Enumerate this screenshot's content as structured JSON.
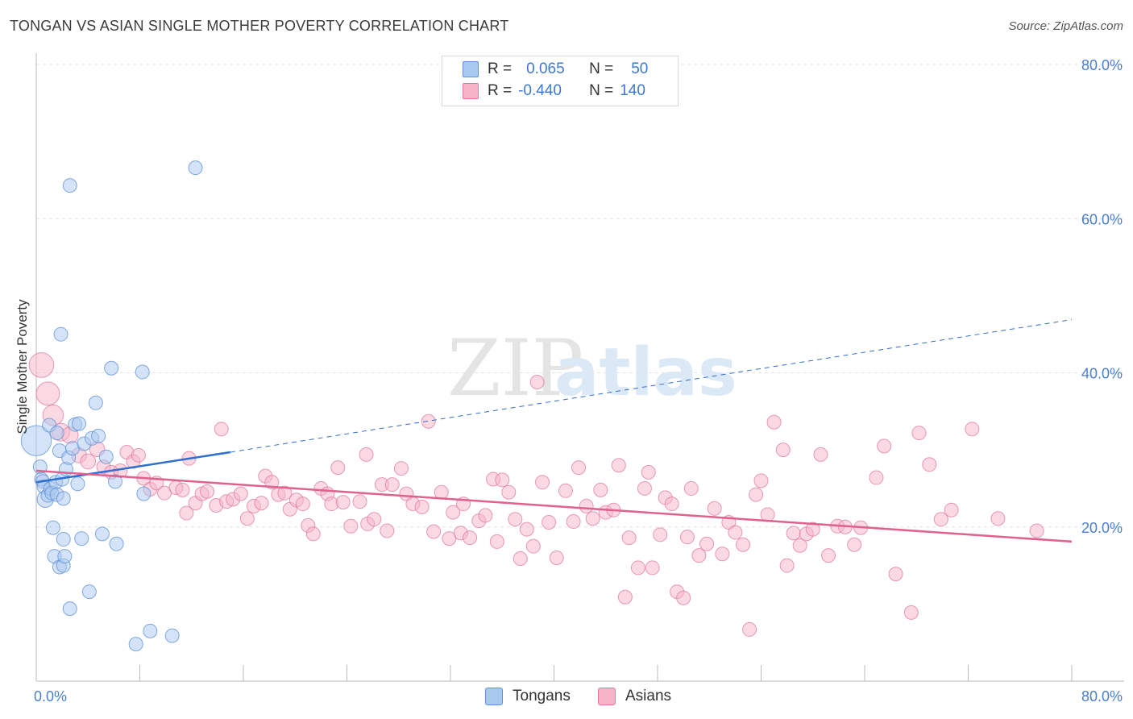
{
  "title": "TONGAN VS ASIAN SINGLE MOTHER POVERTY CORRELATION CHART",
  "source": "Source: ZipAtlas.com",
  "watermark": {
    "zip": "ZIP",
    "atlas": "atlas"
  },
  "legend": {
    "rows": [
      {
        "r_label": "R =",
        "r_value": "0.065",
        "n_label": "N =",
        "n_value": "50",
        "color": "#a9c8f0"
      },
      {
        "r_label": "R =",
        "r_value": "-0.440",
        "n_label": "N =",
        "n_value": "140",
        "color": "#f5b3c8"
      }
    ]
  },
  "bottom_legend": [
    {
      "label": "Tongans",
      "color": "#a9c8f0"
    },
    {
      "label": "Asians",
      "color": "#f5b3c8"
    }
  ],
  "chart_data": {
    "type": "scatter",
    "ylabel": "Single Mother Poverty",
    "xlim": [
      0,
      80
    ],
    "ylim": [
      0,
      80
    ],
    "x_tick_labels": [
      "0.0%",
      "80.0%"
    ],
    "y_tick_labels": [
      "20.0%",
      "40.0%",
      "60.0%",
      "80.0%"
    ],
    "y_ticks": [
      20,
      40,
      60,
      80
    ],
    "grid": "horizontal dashed",
    "legend_placement": "top-center",
    "series": [
      {
        "name": "Tongans",
        "color": "#a9c8f0",
        "stroke": "#5b8fd6",
        "trend": {
          "x0": 0,
          "y0": 25.8,
          "x1": 15,
          "y1": 29.7,
          "x_dash_end": 80,
          "y_dash_end": 46.9,
          "color": "#2f6fcf"
        },
        "points": [
          [
            0.0,
            31.2,
            2.2
          ],
          [
            0.3,
            27.8,
            1
          ],
          [
            0.4,
            26.2,
            1
          ],
          [
            0.5,
            25.9,
            1
          ],
          [
            0.6,
            25.2,
            1
          ],
          [
            0.7,
            23.6,
            1.2
          ],
          [
            0.9,
            24.1,
            1
          ],
          [
            1.0,
            33.2,
            1
          ],
          [
            1.1,
            25.0,
            1
          ],
          [
            1.2,
            24.4,
            1
          ],
          [
            1.3,
            19.9,
            1
          ],
          [
            1.4,
            16.2,
            1
          ],
          [
            1.5,
            25.8,
            1
          ],
          [
            1.6,
            32.2,
            1
          ],
          [
            1.6,
            24.2,
            1
          ],
          [
            1.8,
            29.9,
            1
          ],
          [
            1.8,
            14.8,
            1
          ],
          [
            1.9,
            45.0,
            1
          ],
          [
            2.0,
            26.2,
            1
          ],
          [
            2.1,
            15.0,
            1
          ],
          [
            2.1,
            18.4,
            1
          ],
          [
            2.2,
            16.2,
            1
          ],
          [
            2.1,
            23.7,
            1
          ],
          [
            2.3,
            27.5,
            1
          ],
          [
            2.5,
            29.0,
            1
          ],
          [
            2.6,
            9.4,
            1
          ],
          [
            2.6,
            64.3,
            1
          ],
          [
            2.8,
            30.2,
            1
          ],
          [
            3.0,
            33.3,
            1
          ],
          [
            3.2,
            25.6,
            1
          ],
          [
            3.3,
            33.4,
            1
          ],
          [
            3.5,
            18.5,
            1
          ],
          [
            3.7,
            30.8,
            1
          ],
          [
            4.1,
            11.6,
            1
          ],
          [
            4.3,
            31.5,
            1
          ],
          [
            4.6,
            36.1,
            1
          ],
          [
            4.8,
            31.8,
            1
          ],
          [
            5.1,
            19.1,
            1
          ],
          [
            5.4,
            29.1,
            1
          ],
          [
            5.8,
            40.6,
            1
          ],
          [
            6.1,
            25.9,
            1
          ],
          [
            6.2,
            17.8,
            1
          ],
          [
            7.7,
            4.8,
            1
          ],
          [
            8.3,
            24.3,
            1
          ],
          [
            8.2,
            40.1,
            1
          ],
          [
            8.8,
            6.5,
            1
          ],
          [
            10.5,
            5.9,
            1
          ],
          [
            12.3,
            66.6,
            1
          ]
        ]
      },
      {
        "name": "Asians",
        "color": "#f5b3c8",
        "stroke": "#e07aa0",
        "trend": {
          "x0": 0,
          "y0": 27.3,
          "x1": 80,
          "y1": 18.1,
          "color": "#e0608e"
        },
        "points": [
          [
            0.4,
            41.0,
            1.8
          ],
          [
            0.9,
            37.3,
            1.7
          ],
          [
            1.3,
            34.5,
            1.5
          ],
          [
            1.9,
            32.3,
            1.3
          ],
          [
            2.6,
            31.9,
            1.2
          ],
          [
            3.3,
            29.3,
            1.1
          ],
          [
            4.0,
            28.5,
            1.1
          ],
          [
            4.7,
            30.1,
            1.1
          ],
          [
            5.2,
            27.8,
            1
          ],
          [
            5.8,
            27.1,
            1
          ],
          [
            6.5,
            27.3,
            1
          ],
          [
            7.0,
            29.7,
            1
          ],
          [
            7.5,
            28.5,
            1
          ],
          [
            7.9,
            29.3,
            1
          ],
          [
            8.3,
            26.3,
            1
          ],
          [
            8.8,
            24.9,
            1
          ],
          [
            9.3,
            25.7,
            1
          ],
          [
            9.9,
            24.4,
            1
          ],
          [
            10.8,
            25.1,
            1
          ],
          [
            11.3,
            24.8,
            1
          ],
          [
            11.6,
            21.8,
            1
          ],
          [
            11.8,
            28.9,
            1
          ],
          [
            12.3,
            23.1,
            1
          ],
          [
            12.8,
            24.3,
            1
          ],
          [
            13.2,
            24.6,
            1
          ],
          [
            13.9,
            22.8,
            1
          ],
          [
            14.3,
            32.7,
            1
          ],
          [
            14.7,
            23.3,
            1
          ],
          [
            15.2,
            23.6,
            1
          ],
          [
            15.8,
            24.3,
            1
          ],
          [
            16.3,
            21.1,
            1
          ],
          [
            16.8,
            22.7,
            1
          ],
          [
            17.4,
            23.1,
            1
          ],
          [
            17.7,
            26.6,
            1
          ],
          [
            18.2,
            25.8,
            1
          ],
          [
            18.7,
            24.2,
            1
          ],
          [
            19.2,
            24.4,
            1
          ],
          [
            19.6,
            22.3,
            1
          ],
          [
            20.1,
            23.5,
            1
          ],
          [
            20.6,
            23.0,
            1
          ],
          [
            21.0,
            20.2,
            1
          ],
          [
            21.4,
            19.1,
            1
          ],
          [
            22.0,
            25.0,
            1
          ],
          [
            22.5,
            24.3,
            1
          ],
          [
            22.8,
            23.0,
            1
          ],
          [
            23.3,
            27.7,
            1
          ],
          [
            23.7,
            23.2,
            1
          ],
          [
            24.3,
            20.1,
            1
          ],
          [
            25.0,
            23.3,
            1
          ],
          [
            25.5,
            29.4,
            1
          ],
          [
            25.6,
            20.4,
            1
          ],
          [
            26.1,
            21.0,
            1
          ],
          [
            26.7,
            25.5,
            1
          ],
          [
            27.1,
            19.5,
            1
          ],
          [
            27.5,
            25.5,
            1
          ],
          [
            28.2,
            27.6,
            1
          ],
          [
            28.6,
            24.3,
            1
          ],
          [
            29.1,
            23.0,
            1
          ],
          [
            29.8,
            22.6,
            1
          ],
          [
            30.3,
            33.7,
            1
          ],
          [
            30.7,
            19.4,
            1
          ],
          [
            31.3,
            24.5,
            1
          ],
          [
            31.9,
            18.5,
            1
          ],
          [
            32.2,
            21.9,
            1
          ],
          [
            32.8,
            19.2,
            1
          ],
          [
            33.0,
            23.0,
            1
          ],
          [
            33.5,
            18.6,
            1
          ],
          [
            34.2,
            20.8,
            1
          ],
          [
            34.7,
            21.5,
            1
          ],
          [
            35.3,
            26.2,
            1
          ],
          [
            35.6,
            18.1,
            1
          ],
          [
            36.0,
            26.1,
            1
          ],
          [
            36.5,
            24.5,
            1
          ],
          [
            37.0,
            21.0,
            1
          ],
          [
            37.4,
            15.9,
            1
          ],
          [
            37.9,
            19.7,
            1
          ],
          [
            38.4,
            17.5,
            1
          ],
          [
            38.7,
            38.8,
            1
          ],
          [
            39.1,
            25.8,
            1
          ],
          [
            39.6,
            20.6,
            1
          ],
          [
            40.2,
            16.0,
            1
          ],
          [
            40.9,
            24.7,
            1
          ],
          [
            41.5,
            20.7,
            1
          ],
          [
            41.9,
            27.7,
            1
          ],
          [
            42.5,
            22.7,
            1
          ],
          [
            43.0,
            21.1,
            1
          ],
          [
            43.6,
            24.8,
            1
          ],
          [
            44.0,
            21.9,
            1
          ],
          [
            44.6,
            22.2,
            1
          ],
          [
            45.0,
            28.0,
            1
          ],
          [
            45.5,
            10.9,
            1
          ],
          [
            45.8,
            18.6,
            1
          ],
          [
            46.5,
            14.7,
            1
          ],
          [
            47.0,
            25.0,
            1
          ],
          [
            47.3,
            27.1,
            1
          ],
          [
            47.6,
            14.7,
            1
          ],
          [
            48.2,
            19.0,
            1
          ],
          [
            48.6,
            23.8,
            1
          ],
          [
            49.1,
            23.0,
            1
          ],
          [
            49.5,
            11.6,
            1
          ],
          [
            50.0,
            10.8,
            1
          ],
          [
            50.3,
            18.7,
            1
          ],
          [
            50.6,
            25.0,
            1
          ],
          [
            51.2,
            16.3,
            1
          ],
          [
            51.8,
            17.8,
            1
          ],
          [
            52.4,
            22.4,
            1
          ],
          [
            53.0,
            16.5,
            1
          ],
          [
            53.5,
            20.6,
            1
          ],
          [
            54.0,
            19.3,
            1
          ],
          [
            54.6,
            17.7,
            1
          ],
          [
            55.1,
            6.7,
            1
          ],
          [
            55.6,
            24.2,
            1
          ],
          [
            56.0,
            26.0,
            1
          ],
          [
            56.5,
            21.6,
            1
          ],
          [
            57.0,
            33.6,
            1
          ],
          [
            57.7,
            30.0,
            1
          ],
          [
            58.0,
            15.0,
            1
          ],
          [
            58.5,
            19.2,
            1
          ],
          [
            59.0,
            17.6,
            1
          ],
          [
            59.5,
            19.1,
            1
          ],
          [
            60.0,
            19.7,
            1
          ],
          [
            60.6,
            29.4,
            1
          ],
          [
            61.2,
            16.3,
            1
          ],
          [
            61.9,
            20.1,
            1
          ],
          [
            62.5,
            20.0,
            1
          ],
          [
            63.2,
            17.7,
            1
          ],
          [
            63.7,
            19.9,
            1
          ],
          [
            64.9,
            26.4,
            1
          ],
          [
            65.5,
            30.5,
            1
          ],
          [
            66.4,
            13.9,
            1
          ],
          [
            67.6,
            8.9,
            1
          ],
          [
            68.2,
            32.2,
            1
          ],
          [
            69.0,
            28.1,
            1
          ],
          [
            69.9,
            21.0,
            1
          ],
          [
            70.7,
            22.2,
            1
          ],
          [
            72.3,
            32.7,
            1
          ],
          [
            74.3,
            21.1,
            1
          ],
          [
            77.3,
            19.5,
            1
          ]
        ]
      }
    ]
  }
}
